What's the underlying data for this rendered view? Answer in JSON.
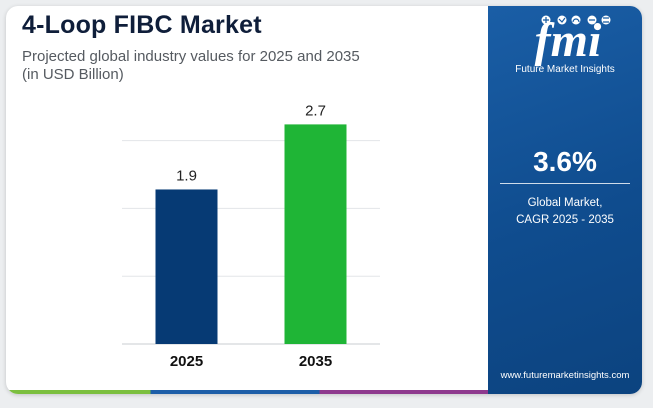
{
  "header": {
    "title": "4-Loop FIBC Market",
    "subtitle_line1": "Projected global industry values for 2025 and 2035",
    "subtitle_line2": "(in USD Billion)"
  },
  "chart_data": {
    "type": "bar",
    "title": "4-Loop FIBC Market",
    "subtitle": "Projected global industry values for 2025 and 2035 (in USD Billion)",
    "categories": [
      "2025",
      "2035"
    ],
    "values": [
      1.9,
      2.7
    ],
    "data_labels": [
      "1.9",
      "2.7"
    ],
    "colors": [
      "#063a74",
      "#1fb536"
    ],
    "xlabel": "",
    "ylabel": "",
    "ylim": [
      0,
      3.0
    ],
    "grid": true,
    "legend": "none"
  },
  "side_panel": {
    "logo_text": "fmi",
    "logo_caption": "Future Market Insights",
    "cagr_value": "3.6%",
    "cagr_label_line1": "Global Market,",
    "cagr_label_line2": "CAGR 2025 - 2035",
    "website": "www.futuremarketinsights.com",
    "background_color": "#1559a0"
  }
}
